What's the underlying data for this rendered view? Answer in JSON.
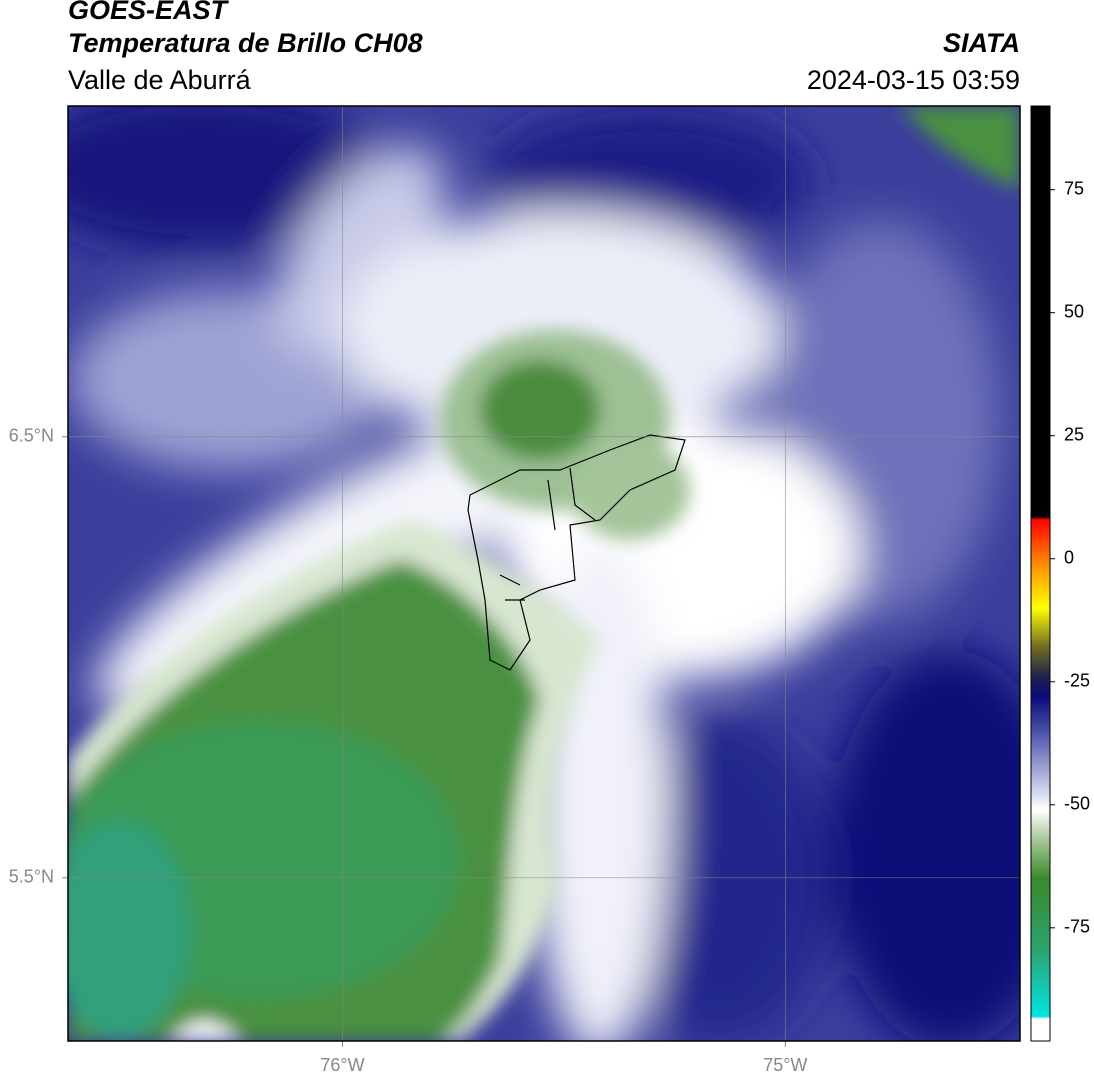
{
  "header": {
    "title": "GOES-EAST",
    "subtitle": "Temperatura de Brillo CH08",
    "region": "Valle de Aburrá",
    "source": "SIATA",
    "datetime": "2024-03-15 03:59"
  },
  "map": {
    "xlim": [
      -76.62,
      -74.47
    ],
    "ylim": [
      5.13,
      7.25
    ],
    "xticks": [
      {
        "value": -76,
        "label": "76°W"
      },
      {
        "value": -75,
        "label": "75°W"
      }
    ],
    "yticks": [
      {
        "value": 6.5,
        "label": "6.5°N"
      },
      {
        "value": 5.5,
        "label": "5.5°N"
      }
    ],
    "grid": true
  },
  "colorbar": {
    "lim": [
      -98,
      92
    ],
    "ticks": [
      75,
      50,
      25,
      0,
      -25,
      -50,
      -75
    ],
    "colormap": [
      {
        "value": -98,
        "color": "#ffffff"
      },
      {
        "value": -93.5,
        "color": "#ffffff"
      },
      {
        "value": -93,
        "color": "#00e5e0"
      },
      {
        "value": -80,
        "color": "#2aa574"
      },
      {
        "value": -65,
        "color": "#3a8a2a"
      },
      {
        "value": -57,
        "color": "#a8c89a"
      },
      {
        "value": -51,
        "color": "#ffffff"
      },
      {
        "value": -45,
        "color": "#b8bce0"
      },
      {
        "value": -35,
        "color": "#4a50a8"
      },
      {
        "value": -28,
        "color": "#0a0a7a"
      },
      {
        "value": -24,
        "color": "#202050"
      },
      {
        "value": -18,
        "color": "#706a20"
      },
      {
        "value": -10,
        "color": "#ffff00"
      },
      {
        "value": -2,
        "color": "#ff9900"
      },
      {
        "value": 8,
        "color": "#ff0000"
      },
      {
        "value": 8.5,
        "color": "#000000"
      },
      {
        "value": 92,
        "color": "#000000"
      }
    ]
  }
}
